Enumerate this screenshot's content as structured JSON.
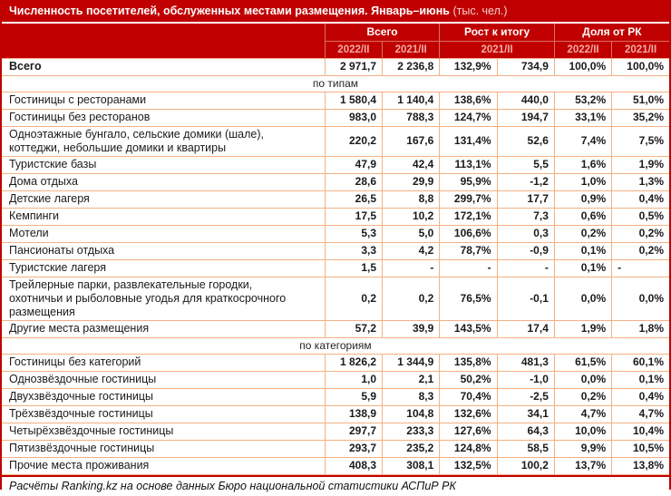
{
  "title": {
    "main": "Численность посетителей, обслуженных местами размещения. Январь–июнь",
    "unit": "(тыс. чел.)"
  },
  "header": {
    "groups": [
      {
        "label": "Всего"
      },
      {
        "label": "Рост к итогу"
      },
      {
        "label": "Доля от РК"
      }
    ],
    "years": [
      "2022/II",
      "2021/II",
      "2021/II",
      "2022/II",
      "2021/II"
    ]
  },
  "rows": [
    {
      "type": "row",
      "bold": true,
      "label": "Всего",
      "values": [
        "2 971,7",
        "2 236,8",
        "132,9%",
        "734,9",
        "100,0%",
        "100,0%"
      ]
    },
    {
      "type": "section",
      "label": "по типам"
    },
    {
      "type": "row",
      "label": "Гостиницы с ресторанами",
      "values": [
        "1 580,4",
        "1 140,4",
        "138,6%",
        "440,0",
        "53,2%",
        "51,0%"
      ]
    },
    {
      "type": "row",
      "label": "Гостиницы без ресторанов",
      "values": [
        "983,0",
        "788,3",
        "124,7%",
        "194,7",
        "33,1%",
        "35,2%"
      ]
    },
    {
      "type": "row",
      "label": "Одноэтажные бунгало, сельские домики (шале), коттеджи, небольшие домики и квартиры",
      "values": [
        "220,2",
        "167,6",
        "131,4%",
        "52,6",
        "7,4%",
        "7,5%"
      ]
    },
    {
      "type": "row",
      "label": "Туристские базы",
      "values": [
        "47,9",
        "42,4",
        "113,1%",
        "5,5",
        "1,6%",
        "1,9%"
      ]
    },
    {
      "type": "row",
      "label": "Дома отдыха",
      "values": [
        "28,6",
        "29,9",
        "95,9%",
        "-1,2",
        "1,0%",
        "1,3%"
      ]
    },
    {
      "type": "row",
      "label": "Детские лагеря",
      "values": [
        "26,5",
        "8,8",
        "299,7%",
        "17,7",
        "0,9%",
        "0,4%"
      ]
    },
    {
      "type": "row",
      "label": "Кемпинги",
      "values": [
        "17,5",
        "10,2",
        "172,1%",
        "7,3",
        "0,6%",
        "0,5%"
      ]
    },
    {
      "type": "row",
      "label": "Мотели",
      "values": [
        "5,3",
        "5,0",
        "106,6%",
        "0,3",
        "0,2%",
        "0,2%"
      ]
    },
    {
      "type": "row",
      "label": "Пансионаты отдыха",
      "values": [
        "3,3",
        "4,2",
        "78,7%",
        "-0,9",
        "0,1%",
        "0,2%"
      ]
    },
    {
      "type": "row",
      "label": "Туристские лагеря",
      "last_left": true,
      "values": [
        "1,5",
        "-",
        "-",
        "-",
        "0,1%",
        "-"
      ]
    },
    {
      "type": "row",
      "label": "Трейлерные парки, развлекательные городки, охотничьи и рыболовные угодья для краткосрочного размещения",
      "values": [
        "0,2",
        "0,2",
        "76,5%",
        "-0,1",
        "0,0%",
        "0,0%"
      ]
    },
    {
      "type": "row",
      "label": "Другие места размещения",
      "values": [
        "57,2",
        "39,9",
        "143,5%",
        "17,4",
        "1,9%",
        "1,8%"
      ]
    },
    {
      "type": "section",
      "label": "по категориям"
    },
    {
      "type": "row",
      "label": "Гостиницы без категорий",
      "values": [
        "1 826,2",
        "1 344,9",
        "135,8%",
        "481,3",
        "61,5%",
        "60,1%"
      ]
    },
    {
      "type": "row",
      "label": "Однозвёздочные гостиницы",
      "values": [
        "1,0",
        "2,1",
        "50,2%",
        "-1,0",
        "0,0%",
        "0,1%"
      ]
    },
    {
      "type": "row",
      "label": "Двухзвёздочные гостиницы",
      "values": [
        "5,9",
        "8,3",
        "70,4%",
        "-2,5",
        "0,2%",
        "0,4%"
      ]
    },
    {
      "type": "row",
      "label": "Трёхзвёздочные гостиницы",
      "values": [
        "138,9",
        "104,8",
        "132,6%",
        "34,1",
        "4,7%",
        "4,7%"
      ]
    },
    {
      "type": "row",
      "label": "Четырёхзвёздочные гостиницы",
      "values": [
        "297,7",
        "233,3",
        "127,6%",
        "64,3",
        "10,0%",
        "10,4%"
      ]
    },
    {
      "type": "row",
      "label": "Пятизвёздочные гостиницы",
      "values": [
        "293,7",
        "235,2",
        "124,8%",
        "58,5",
        "9,9%",
        "10,5%"
      ]
    },
    {
      "type": "row",
      "label": "Прочие места проживания",
      "values": [
        "408,3",
        "308,1",
        "132,5%",
        "100,2",
        "13,7%",
        "13,8%"
      ]
    }
  ],
  "footer": {
    "source": "Расчёты Ranking.kz на основе данных Бюро национальной статистики АСПиР РК"
  },
  "colors": {
    "accent": "#C00000",
    "grid": "#F4B183",
    "year_text": "#F3ACA2"
  }
}
